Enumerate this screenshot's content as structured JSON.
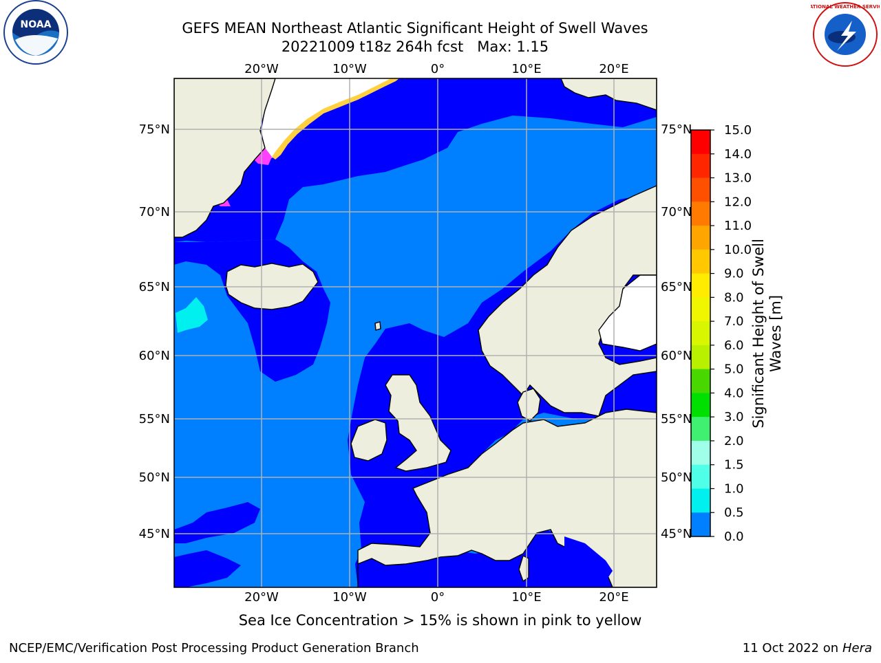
{
  "title": {
    "line1": "GEFS MEAN Northeast Atlantic Significant Height of Swell Waves",
    "line2": "20221009 t18z 264h fcst   Max: 1.15"
  },
  "map": {
    "lon_labels": [
      "20°W",
      "10°W",
      "0°",
      "10°E",
      "20°E"
    ],
    "lat_labels": [
      "75°N",
      "70°N",
      "65°N",
      "60°N",
      "55°N",
      "50°N",
      "45°N"
    ],
    "colors": {
      "deep_blue": "#0000ff",
      "mid_blue": "#0080ff",
      "land": "#eeeedf",
      "ice": "#ffffff",
      "grid": "#b0b0b0"
    }
  },
  "colorbar": {
    "title_line1": "Significant Height of Swell",
    "title_line2": "Waves [m]",
    "ticks": [
      "15.0",
      "14.0",
      "13.0",
      "12.0",
      "11.0",
      "10.0",
      "9.0",
      "8.0",
      "7.0",
      "6.0",
      "5.0",
      "4.0",
      "3.0",
      "2.0",
      "1.5",
      "1.0",
      "0.5",
      "0.0"
    ],
    "colors": [
      "#ff0000",
      "#ff2600",
      "#ff5000",
      "#ff7a00",
      "#ffa500",
      "#ffc800",
      "#ffec00",
      "#f0f600",
      "#d8f600",
      "#b8f000",
      "#48d800",
      "#00e000",
      "#40f070",
      "#a0ffe8",
      "#50ffe8",
      "#00f0f0",
      "#0080ff",
      "#0000ff"
    ]
  },
  "caption": "Sea Ice Concentration > 15% is shown in pink to yellow",
  "footer": {
    "left": "NCEP/EMC/Verification Post Processing Product Generation Branch",
    "date": "11 Oct 2022 on",
    "host": "Hera"
  },
  "logos": {
    "left": "NOAA",
    "right": "NATIONAL WEATHER SERVICE"
  }
}
